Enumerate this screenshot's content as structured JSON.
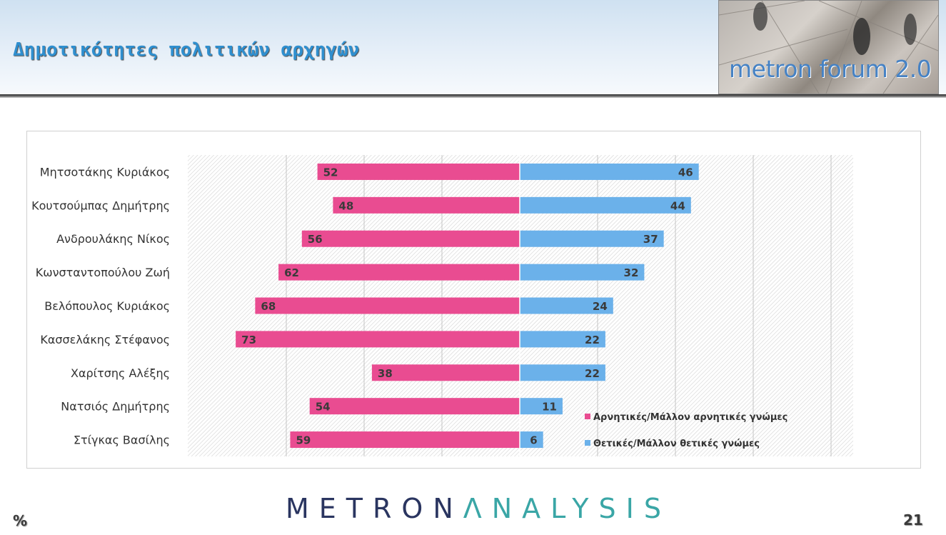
{
  "header": {
    "title": "Δημοτικότητες πολιτικών αρχηγών"
  },
  "logo": {
    "text": "metron forum 2.0"
  },
  "footer": {
    "brand_part1": "METRON",
    "brand_part2": "ΛNALYSIS",
    "unit": "%",
    "page_number": "21"
  },
  "chart_data": {
    "type": "bar",
    "orientation": "horizontal",
    "layout": "diverging",
    "categories": [
      "Μητσοτάκης Κυριάκος",
      "Κουτσούμπας Δημήτρης",
      "Ανδρουλάκης Νίκος",
      "Κωνσταντοπούλου Ζωή",
      "Βελόπουλος Κυριάκος",
      "Κασσελάκης Στέφανος",
      "Χαρίτσης Αλέξης",
      "Νατσιός Δημήτρης",
      "Στίγκας Βασίλης"
    ],
    "series": [
      {
        "name": "Αρνητικές/Μάλλον αρνητικές γνώμες",
        "values": [
          52,
          48,
          56,
          62,
          68,
          73,
          38,
          54,
          59
        ],
        "color": "#e94c91",
        "direction": "left"
      },
      {
        "name": "Θετικές/Μάλλον θετικές γνώμες",
        "values": [
          46,
          44,
          37,
          32,
          24,
          22,
          22,
          11,
          6
        ],
        "color": "#6bb1ea",
        "direction": "right"
      }
    ],
    "xlim": [
      -85,
      85
    ],
    "gridlines": true,
    "legend_position": "bottom-right"
  }
}
